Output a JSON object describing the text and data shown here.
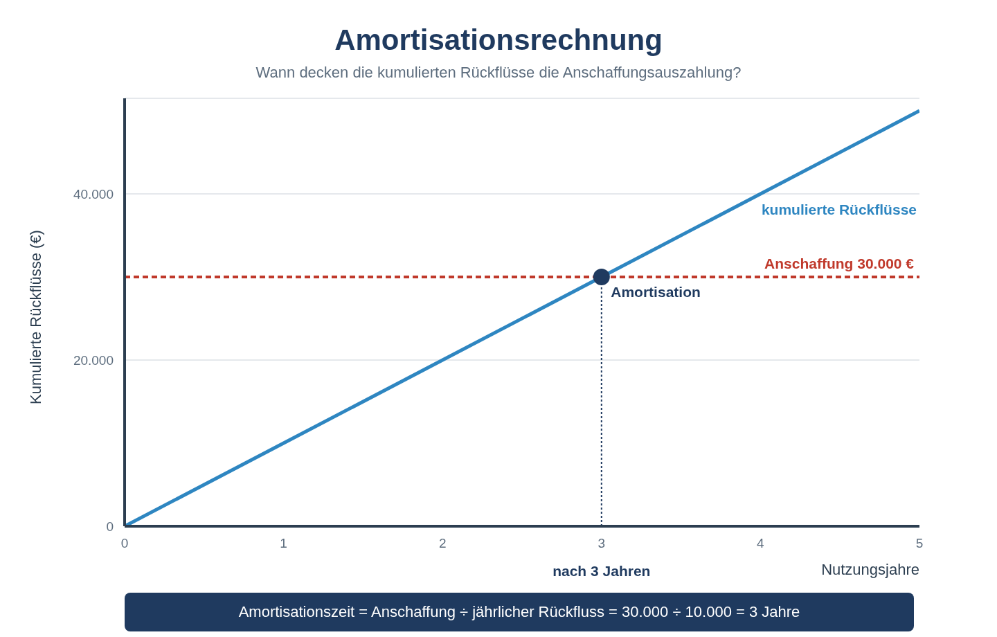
{
  "chart_data": {
    "type": "line",
    "title": "Amortisationsrechnung",
    "subtitle": "Wann decken die kumulierten Rückflüsse die Anschaffungsauszahlung?",
    "xlabel": "Nutzungsjahre",
    "ylabel": "Kumulierte Rückflüsse (€)",
    "x": [
      0,
      1,
      2,
      3,
      4,
      5
    ],
    "series": [
      {
        "name": "kumulierte Rückflüsse",
        "color": "#2e86c1",
        "values": [
          0,
          10000,
          20000,
          30000,
          40000,
          50000
        ]
      },
      {
        "name": "Amortisation",
        "type": "scatter",
        "color": "#1f3a5f",
        "x": [
          3
        ],
        "values": [
          30000
        ]
      }
    ],
    "xlim": [
      0,
      5
    ],
    "xticks": [
      0,
      1,
      2,
      3,
      4,
      5
    ],
    "ylim": [
      0,
      51500
    ],
    "yticks": [
      0,
      {
        "value": 20000,
        "label": "20.000"
      },
      {
        "value": 40000,
        "label": "40.000"
      }
    ],
    "grid": "y",
    "legend": false,
    "ref_lines": [
      {
        "axis": "y",
        "value": 30000,
        "label": "Anschaffung 30.000 €",
        "color": "#c0392b",
        "line_style": "dashed"
      },
      {
        "axis": "x",
        "value": 3,
        "label": "nach 3 Jahren",
        "color": "#1f3a5f",
        "line_style": "dotted"
      }
    ],
    "annotations": [
      "Amortisationszeit = Anschaffung ÷ jährlicher Rückfluss = 30.000 ÷ 10.000 = 3 Jahre"
    ]
  }
}
